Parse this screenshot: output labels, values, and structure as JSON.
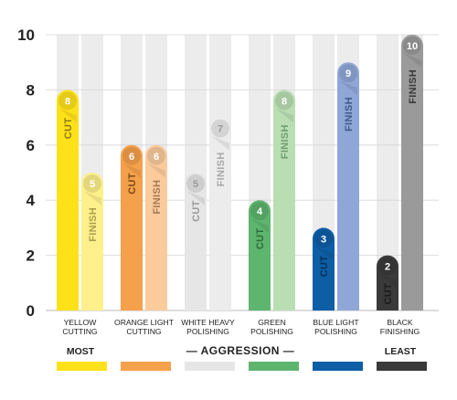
{
  "chart_data": {
    "type": "bar",
    "ylim": [
      0,
      10
    ],
    "yticks": [
      "0",
      "2",
      "4",
      "6",
      "8",
      "10"
    ],
    "groups": [
      {
        "label": [
          "YELLOW",
          "CUTTING"
        ],
        "color": "#FFE11A",
        "light": "#FEF08A",
        "cut": 8,
        "finish": 5
      },
      {
        "label": [
          "ORANGE LIGHT",
          "CUTTING"
        ],
        "color": "#F5A04A",
        "light": "#FBCB9C",
        "cut": 6,
        "finish": 6
      },
      {
        "label": [
          "WHITE HEAVY",
          "POLISHING"
        ],
        "color": "#E6E6E6",
        "light": "#ECECEC",
        "cut": 5,
        "finish": 7
      },
      {
        "label": [
          "GREEN",
          "POLISHING"
        ],
        "color": "#5DB56E",
        "light": "#B9DEB2",
        "cut": 4,
        "finish": 8
      },
      {
        "label": [
          "BLUE LIGHT",
          "POLISHING"
        ],
        "color": "#0E5EA6",
        "light": "#8FA7D6",
        "cut": 3,
        "finish": 9
      },
      {
        "label": [
          "BLACK",
          "FINISHING"
        ],
        "color": "#3A3A3A",
        "light": "#9A9A9A",
        "cut": 2,
        "finish": 10
      }
    ],
    "series": [
      {
        "name": "CUT"
      },
      {
        "name": "FINISH"
      }
    ],
    "aggression_scale": {
      "most": "MOST",
      "middle": "— AGGRESSION —",
      "least": "LEAST",
      "colors": [
        "#FFE11A",
        "#F5A04A",
        "#E6E6E6",
        "#5DB56E",
        "#0E5EA6",
        "#3A3A3A"
      ]
    }
  }
}
